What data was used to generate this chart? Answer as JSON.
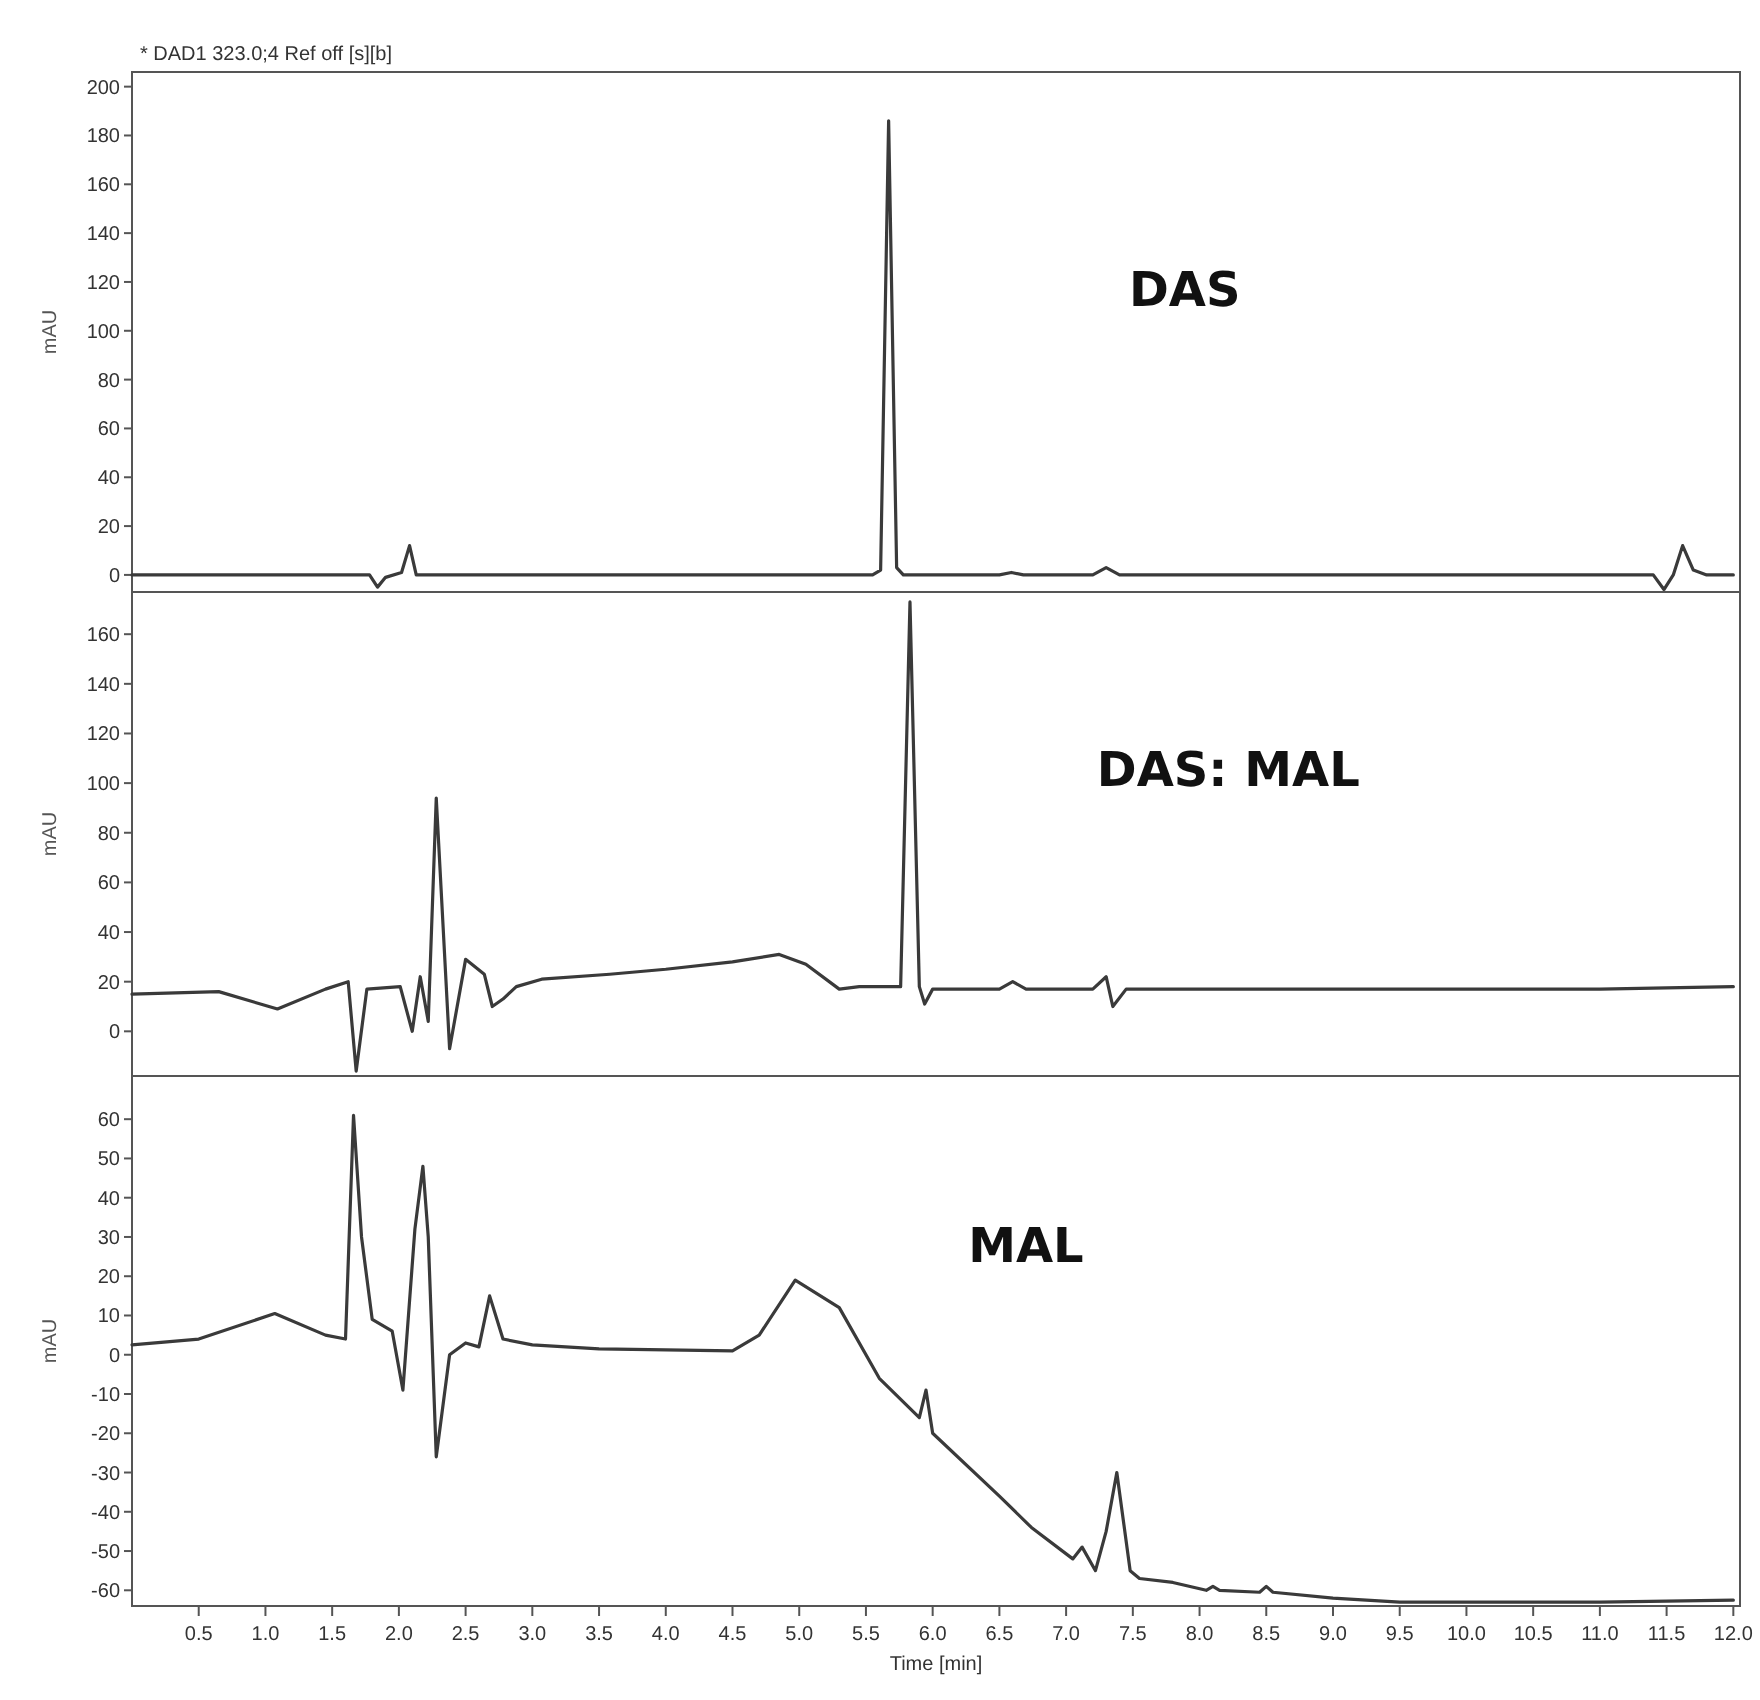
{
  "chart_data": [
    {
      "type": "line",
      "title": "* DAD1 323.0;4 Ref off [s][b]",
      "ylabel": "mAU",
      "annotations": [
        "DAS"
      ],
      "xlim": [
        0,
        12.05
      ],
      "ylim": [
        -7,
        206
      ],
      "yticks": [
        0,
        20,
        40,
        60,
        80,
        100,
        120,
        140,
        160,
        180,
        200
      ],
      "tick_labels": "y",
      "grid": false,
      "marker": "none",
      "line_style": "solid",
      "series": [
        {
          "color": "#3a3a3a",
          "x": [
            0,
            1.5,
            1.78,
            1.84,
            1.9,
            2.02,
            2.08,
            2.13,
            2.3,
            3,
            4,
            5,
            5.55,
            5.61,
            5.67,
            5.73,
            5.78,
            6,
            6.5,
            6.59,
            6.68,
            7.2,
            7.3,
            7.4,
            8,
            9,
            10,
            11,
            11.4,
            11.48,
            11.55,
            11.62,
            11.7,
            11.8,
            12
          ],
          "values": [
            0,
            0,
            0,
            -5,
            -1,
            1,
            12,
            0,
            0,
            0,
            0,
            0,
            0,
            2,
            186,
            3,
            0,
            0,
            0,
            1,
            0,
            0,
            3,
            0,
            0,
            0,
            0,
            0,
            0,
            -6,
            0,
            12,
            2,
            0,
            0
          ]
        }
      ]
    },
    {
      "type": "line",
      "ylabel": "mAU",
      "annotations": [
        "DAS: MAL"
      ],
      "xlim": [
        0,
        12.05
      ],
      "ylim": [
        -18,
        177
      ],
      "yticks": [
        0,
        20,
        40,
        60,
        80,
        100,
        120,
        140,
        160
      ],
      "tick_labels": "y",
      "grid": false,
      "marker": "none",
      "line_style": "solid",
      "series": [
        {
          "color": "#3a3a3a",
          "x": [
            0,
            0.65,
            1.09,
            1.45,
            1.62,
            1.68,
            1.76,
            2.01,
            2.1,
            2.16,
            2.22,
            2.28,
            2.38,
            2.5,
            2.64,
            2.7,
            2.78,
            2.88,
            3.07,
            3.58,
            4,
            4.5,
            4.85,
            5.05,
            5.3,
            5.45,
            5.76,
            5.83,
            5.9,
            5.94,
            6,
            6.5,
            6.6,
            6.7,
            7.2,
            7.3,
            7.35,
            7.45,
            8,
            9,
            10,
            11,
            12
          ],
          "values": [
            15,
            16,
            9,
            17,
            20,
            -16,
            17,
            18,
            0,
            22,
            4,
            94,
            -7,
            29,
            23,
            10,
            13,
            18,
            21,
            23,
            25,
            28,
            31,
            27,
            17,
            18,
            18,
            173,
            18,
            11,
            17,
            17,
            20,
            17,
            17,
            22,
            10,
            17,
            17,
            17,
            17,
            17,
            18
          ]
        }
      ]
    },
    {
      "type": "line",
      "xlabel": "Time [min]",
      "ylabel": "mAU",
      "annotations": [
        "MAL"
      ],
      "xlim": [
        0,
        12.05
      ],
      "ylim": [
        -64,
        71
      ],
      "xticks": [
        {
          "value": 0.5,
          "label": "0.5"
        },
        {
          "value": 1,
          "label": "1.0"
        },
        {
          "value": 1.5,
          "label": "1.5"
        },
        {
          "value": 2,
          "label": "2.0"
        },
        {
          "value": 2.5,
          "label": "2.5"
        },
        {
          "value": 3,
          "label": "3.0"
        },
        {
          "value": 3.5,
          "label": "3.5"
        },
        {
          "value": 4,
          "label": "4.0"
        },
        {
          "value": 4.5,
          "label": "4.5"
        },
        {
          "value": 5,
          "label": "5.0"
        },
        {
          "value": 5.5,
          "label": "5.5"
        },
        {
          "value": 6,
          "label": "6.0"
        },
        {
          "value": 6.5,
          "label": "6.5"
        },
        {
          "value": 7,
          "label": "7.0"
        },
        {
          "value": 7.5,
          "label": "7.5"
        },
        {
          "value": 8,
          "label": "8.0"
        },
        {
          "value": 8.5,
          "label": "8.5"
        },
        {
          "value": 9,
          "label": "9.0"
        },
        {
          "value": 9.5,
          "label": "9.5"
        },
        {
          "value": 10,
          "label": "10.0"
        },
        {
          "value": 10.5,
          "label": "10.5"
        },
        {
          "value": 11,
          "label": "11.0"
        },
        {
          "value": 11.5,
          "label": "11.5"
        },
        {
          "value": 12,
          "label": "12.0"
        }
      ],
      "yticks": [
        -60,
        -50,
        -40,
        -30,
        -20,
        -10,
        0,
        10,
        20,
        30,
        40,
        50,
        60
      ],
      "grid": false,
      "marker": "none",
      "line_style": "solid",
      "series": [
        {
          "color": "#3a3a3a",
          "x": [
            0,
            0.5,
            1.07,
            1.45,
            1.6,
            1.66,
            1.72,
            1.8,
            1.95,
            2.03,
            2.12,
            2.18,
            2.22,
            2.28,
            2.38,
            2.5,
            2.6,
            2.68,
            2.78,
            3,
            3.5,
            4.5,
            4.7,
            4.97,
            5.3,
            5.6,
            5.9,
            5.95,
            6,
            6.5,
            6.74,
            7.05,
            7.12,
            7.22,
            7.3,
            7.38,
            7.48,
            7.55,
            7.8,
            8.05,
            8.1,
            8.15,
            8.45,
            8.5,
            8.55,
            9,
            9.5,
            10,
            11,
            12
          ],
          "values": [
            2.5,
            4,
            10.5,
            5,
            4,
            61,
            30,
            9,
            6,
            -9,
            32,
            48,
            30,
            -26,
            0,
            3,
            2,
            15,
            4,
            2.5,
            1.5,
            1,
            5,
            19,
            12,
            -6,
            -16,
            -9,
            -20,
            -36,
            -44,
            -52,
            -49,
            -55,
            -45,
            -30,
            -55,
            -57,
            -58,
            -60,
            -59,
            -60,
            -60.5,
            -59,
            -60.5,
            -62,
            -63,
            -63,
            -63,
            -62.5
          ]
        }
      ]
    }
  ]
}
